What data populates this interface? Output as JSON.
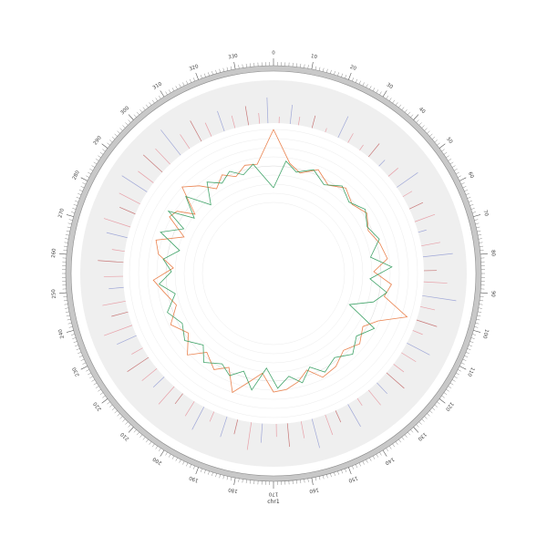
{
  "chart_data": {
    "type": "circos",
    "title": "",
    "chromosome": {
      "name": "chr1",
      "length_mb": 340,
      "major_tick_step_mb": 10,
      "minor_tick_step_mb": 1,
      "major_tick_labels": [
        "0",
        "10",
        "20",
        "30",
        "40",
        "50",
        "60",
        "70",
        "80",
        "90",
        "100",
        "110",
        "120",
        "130",
        "140",
        "150",
        "160",
        "170",
        "180",
        "190",
        "200",
        "210",
        "220",
        "230",
        "240",
        "250",
        "260",
        "270",
        "280",
        "290",
        "300",
        "310",
        "320",
        "330"
      ]
    },
    "tracks": [
      {
        "name": "",
        "kind": "histogram",
        "background": "#efefef",
        "series_colors": [
          "#e8a0a8",
          "#a0a8d8",
          "#c87878"
        ],
        "bins": [
          {
            "pos": 2,
            "value": 0.15,
            "color": 0
          },
          {
            "pos": 6,
            "value": 0.45,
            "color": 1
          },
          {
            "pos": 9,
            "value": 0.2,
            "color": 0
          },
          {
            "pos": 14,
            "value": 0.3,
            "color": 2
          },
          {
            "pos": 19,
            "value": 0.1,
            "color": 0
          },
          {
            "pos": 24,
            "value": 0.55,
            "color": 1
          },
          {
            "pos": 28,
            "value": 0.25,
            "color": 0
          },
          {
            "pos": 33,
            "value": 0.15,
            "color": 0
          },
          {
            "pos": 37,
            "value": 0.4,
            "color": 2
          },
          {
            "pos": 42,
            "value": 0.2,
            "color": 1
          },
          {
            "pos": 47,
            "value": 0.3,
            "color": 0
          },
          {
            "pos": 52,
            "value": 0.6,
            "color": 1
          },
          {
            "pos": 56,
            "value": 0.25,
            "color": 0
          },
          {
            "pos": 61,
            "value": 0.35,
            "color": 2
          },
          {
            "pos": 66,
            "value": 0.5,
            "color": 0
          },
          {
            "pos": 70,
            "value": 0.2,
            "color": 1
          },
          {
            "pos": 75,
            "value": 0.45,
            "color": 0
          },
          {
            "pos": 79,
            "value": 0.7,
            "color": 1
          },
          {
            "pos": 84,
            "value": 0.3,
            "color": 2
          },
          {
            "pos": 88,
            "value": 0.55,
            "color": 0
          },
          {
            "pos": 93,
            "value": 0.8,
            "color": 1
          },
          {
            "pos": 97,
            "value": 0.35,
            "color": 0
          },
          {
            "pos": 102,
            "value": 0.5,
            "color": 2
          },
          {
            "pos": 106,
            "value": 0.25,
            "color": 0
          },
          {
            "pos": 111,
            "value": 0.6,
            "color": 1
          },
          {
            "pos": 115,
            "value": 0.4,
            "color": 0
          },
          {
            "pos": 120,
            "value": 0.3,
            "color": 0
          },
          {
            "pos": 124,
            "value": 0.55,
            "color": 2
          },
          {
            "pos": 129,
            "value": 0.35,
            "color": 1
          },
          {
            "pos": 133,
            "value": 0.45,
            "color": 0
          },
          {
            "pos": 138,
            "value": 0.2,
            "color": 0
          },
          {
            "pos": 142,
            "value": 0.6,
            "color": 1
          },
          {
            "pos": 147,
            "value": 0.3,
            "color": 2
          },
          {
            "pos": 151,
            "value": 0.5,
            "color": 0
          },
          {
            "pos": 156,
            "value": 0.7,
            "color": 1
          },
          {
            "pos": 160,
            "value": 0.4,
            "color": 0
          },
          {
            "pos": 165,
            "value": 0.55,
            "color": 2
          },
          {
            "pos": 169,
            "value": 0.3,
            "color": 0
          },
          {
            "pos": 174,
            "value": 0.45,
            "color": 1
          },
          {
            "pos": 178,
            "value": 0.65,
            "color": 0
          },
          {
            "pos": 183,
            "value": 0.35,
            "color": 2
          },
          {
            "pos": 187,
            "value": 0.5,
            "color": 1
          },
          {
            "pos": 192,
            "value": 0.25,
            "color": 0
          },
          {
            "pos": 196,
            "value": 0.6,
            "color": 1
          },
          {
            "pos": 200,
            "value": 0.4,
            "color": 0
          },
          {
            "pos": 205,
            "value": 0.3,
            "color": 2
          },
          {
            "pos": 209,
            "value": 0.55,
            "color": 0
          },
          {
            "pos": 214,
            "value": 0.35,
            "color": 1
          },
          {
            "pos": 218,
            "value": 0.45,
            "color": 0
          },
          {
            "pos": 223,
            "value": 0.6,
            "color": 2
          },
          {
            "pos": 227,
            "value": 0.3,
            "color": 0
          },
          {
            "pos": 232,
            "value": 0.5,
            "color": 1
          },
          {
            "pos": 236,
            "value": 0.7,
            "color": 0
          },
          {
            "pos": 241,
            "value": 0.4,
            "color": 2
          },
          {
            "pos": 245,
            "value": 0.55,
            "color": 0
          },
          {
            "pos": 250,
            "value": 0.35,
            "color": 1
          },
          {
            "pos": 254,
            "value": 0.45,
            "color": 0
          },
          {
            "pos": 259,
            "value": 0.6,
            "color": 2
          },
          {
            "pos": 263,
            "value": 0.3,
            "color": 0
          },
          {
            "pos": 268,
            "value": 0.5,
            "color": 1
          },
          {
            "pos": 272,
            "value": 0.65,
            "color": 0
          },
          {
            "pos": 277,
            "value": 0.4,
            "color": 2
          },
          {
            "pos": 281,
            "value": 0.55,
            "color": 0
          },
          {
            "pos": 286,
            "value": 0.7,
            "color": 1
          },
          {
            "pos": 290,
            "value": 0.45,
            "color": 0
          },
          {
            "pos": 295,
            "value": 0.6,
            "color": 2
          },
          {
            "pos": 299,
            "value": 0.5,
            "color": 0
          },
          {
            "pos": 304,
            "value": 0.75,
            "color": 1
          },
          {
            "pos": 308,
            "value": 0.4,
            "color": 0
          },
          {
            "pos": 313,
            "value": 0.55,
            "color": 2
          },
          {
            "pos": 317,
            "value": 0.35,
            "color": 0
          },
          {
            "pos": 322,
            "value": 0.5,
            "color": 1
          },
          {
            "pos": 326,
            "value": 0.3,
            "color": 0
          },
          {
            "pos": 331,
            "value": 0.45,
            "color": 2
          },
          {
            "pos": 335,
            "value": 0.25,
            "color": 0
          },
          {
            "pos": 338,
            "value": 0.6,
            "color": 1
          }
        ]
      },
      {
        "name": "",
        "kind": "line",
        "baseline": 0,
        "value_range": [
          -1,
          1
        ],
        "series": [
          {
            "name": "",
            "color": "#e8743b",
            "points": [
              {
                "pos": 0,
                "value": 1.0
              },
              {
                "pos": 8,
                "value": 0.1
              },
              {
                "pos": 14,
                "value": -0.1
              },
              {
                "pos": 22,
                "value": 0.15
              },
              {
                "pos": 30,
                "value": -0.1
              },
              {
                "pos": 38,
                "value": 0.12
              },
              {
                "pos": 46,
                "value": -0.08
              },
              {
                "pos": 54,
                "value": 0.1
              },
              {
                "pos": 62,
                "value": -0.1
              },
              {
                "pos": 70,
                "value": 0.08
              },
              {
                "pos": 78,
                "value": 0.2
              },
              {
                "pos": 84,
                "value": -0.2
              },
              {
                "pos": 90,
                "value": 0.3
              },
              {
                "pos": 96,
                "value": 0.15
              },
              {
                "pos": 102,
                "value": 0.9
              },
              {
                "pos": 108,
                "value": 0.2
              },
              {
                "pos": 114,
                "value": -0.1
              },
              {
                "pos": 122,
                "value": 0.1
              },
              {
                "pos": 130,
                "value": -0.1
              },
              {
                "pos": 138,
                "value": 0.12
              },
              {
                "pos": 146,
                "value": 0.2
              },
              {
                "pos": 152,
                "value": -0.15
              },
              {
                "pos": 158,
                "value": 0.1
              },
              {
                "pos": 164,
                "value": 0.25
              },
              {
                "pos": 170,
                "value": 0.3
              },
              {
                "pos": 176,
                "value": -0.2
              },
              {
                "pos": 182,
                "value": 0.1
              },
              {
                "pos": 188,
                "value": 0.5
              },
              {
                "pos": 194,
                "value": -0.1
              },
              {
                "pos": 200,
                "value": 0.15
              },
              {
                "pos": 208,
                "value": -0.12
              },
              {
                "pos": 214,
                "value": 0.3
              },
              {
                "pos": 222,
                "value": -0.1
              },
              {
                "pos": 230,
                "value": 0.2
              },
              {
                "pos": 238,
                "value": -0.15
              },
              {
                "pos": 246,
                "value": 0.1
              },
              {
                "pos": 252,
                "value": 0.35
              },
              {
                "pos": 258,
                "value": -0.2
              },
              {
                "pos": 264,
                "value": 0.25
              },
              {
                "pos": 270,
                "value": 0.4
              },
              {
                "pos": 276,
                "value": -0.3
              },
              {
                "pos": 282,
                "value": 0.3
              },
              {
                "pos": 286,
                "value": 0.2
              },
              {
                "pos": 290,
                "value": -0.25
              },
              {
                "pos": 296,
                "value": 0.5
              },
              {
                "pos": 302,
                "value": 0.2
              },
              {
                "pos": 308,
                "value": -0.15
              },
              {
                "pos": 314,
                "value": 0.1
              },
              {
                "pos": 320,
                "value": -0.1
              },
              {
                "pos": 326,
                "value": 0.12
              },
              {
                "pos": 332,
                "value": 0.08
              },
              {
                "pos": 340,
                "value": 1.0
              }
            ]
          },
          {
            "name": "",
            "color": "#2e9a5a",
            "points": [
              {
                "pos": 0,
                "value": -0.6
              },
              {
                "pos": 6,
                "value": 0.15
              },
              {
                "pos": 12,
                "value": -0.1
              },
              {
                "pos": 20,
                "value": 0.1
              },
              {
                "pos": 28,
                "value": -0.15
              },
              {
                "pos": 36,
                "value": 0.1
              },
              {
                "pos": 44,
                "value": -0.1
              },
              {
                "pos": 52,
                "value": 0.12
              },
              {
                "pos": 60,
                "value": -0.08
              },
              {
                "pos": 68,
                "value": 0.1
              },
              {
                "pos": 76,
                "value": -0.25
              },
              {
                "pos": 82,
                "value": 0.3
              },
              {
                "pos": 88,
                "value": -0.3
              },
              {
                "pos": 94,
                "value": 0.2
              },
              {
                "pos": 100,
                "value": -0.1
              },
              {
                "pos": 106,
                "value": -0.7
              },
              {
                "pos": 112,
                "value": 0.2
              },
              {
                "pos": 120,
                "value": -0.1
              },
              {
                "pos": 128,
                "value": 0.15
              },
              {
                "pos": 136,
                "value": -0.1
              },
              {
                "pos": 144,
                "value": 0.1
              },
              {
                "pos": 150,
                "value": -0.2
              },
              {
                "pos": 156,
                "value": 0.15
              },
              {
                "pos": 162,
                "value": -0.1
              },
              {
                "pos": 168,
                "value": 0.2
              },
              {
                "pos": 174,
                "value": -0.35
              },
              {
                "pos": 180,
                "value": 0.3
              },
              {
                "pos": 186,
                "value": -0.15
              },
              {
                "pos": 192,
                "value": 0.1
              },
              {
                "pos": 198,
                "value": -0.1
              },
              {
                "pos": 206,
                "value": 0.15
              },
              {
                "pos": 212,
                "value": -0.2
              },
              {
                "pos": 220,
                "value": 0.1
              },
              {
                "pos": 228,
                "value": -0.1
              },
              {
                "pos": 236,
                "value": 0.15
              },
              {
                "pos": 244,
                "value": -0.2
              },
              {
                "pos": 250,
                "value": 0.2
              },
              {
                "pos": 256,
                "value": -0.15
              },
              {
                "pos": 262,
                "value": 0.1
              },
              {
                "pos": 268,
                "value": -0.3
              },
              {
                "pos": 274,
                "value": 0.35
              },
              {
                "pos": 280,
                "value": -0.2
              },
              {
                "pos": 284,
                "value": 0.4
              },
              {
                "pos": 288,
                "value": -0.3
              },
              {
                "pos": 294,
                "value": 0.25
              },
              {
                "pos": 300,
                "value": -0.4
              },
              {
                "pos": 306,
                "value": 0.15
              },
              {
                "pos": 312,
                "value": -0.1
              },
              {
                "pos": 318,
                "value": 0.1
              },
              {
                "pos": 324,
                "value": -0.12
              },
              {
                "pos": 330,
                "value": 0.1
              },
              {
                "pos": 340,
                "value": -0.6
              }
            ]
          }
        ]
      }
    ],
    "xlabel": "chr1"
  }
}
